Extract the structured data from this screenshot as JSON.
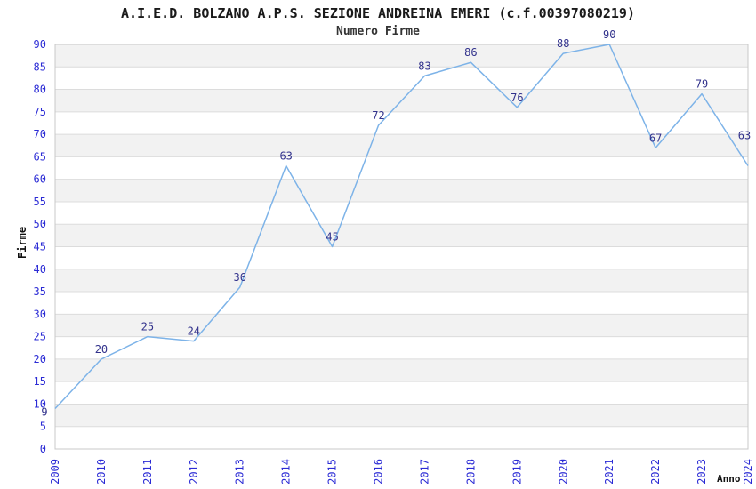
{
  "title": "A.I.E.D. BOLZANO A.P.S. SEZIONE ANDREINA EMERI (c.f.00397080219)",
  "subtitle": "Numero Firme",
  "chart_data": {
    "type": "line",
    "title": "A.I.E.D. BOLZANO A.P.S. SEZIONE ANDREINA EMERI (c.f.00397080219)",
    "subtitle": "Numero Firme",
    "xlabel": "Anno",
    "ylabel": "Firme",
    "categories": [
      "2009",
      "2010",
      "2011",
      "2012",
      "2013",
      "2014",
      "2015",
      "2016",
      "2017",
      "2018",
      "2019",
      "2020",
      "2021",
      "2022",
      "2023",
      "2024"
    ],
    "series": [
      {
        "name": "Numero Firme",
        "values": [
          9,
          20,
          25,
          24,
          36,
          63,
          45,
          72,
          83,
          86,
          76,
          88,
          90,
          67,
          79,
          63
        ]
      }
    ],
    "ylim": [
      0,
      90
    ],
    "ytick_step": 5,
    "grid": "horizontal",
    "bands": "alternating-gray",
    "legend": "none",
    "data_labels": true,
    "colors": {
      "line": "#7db3e8",
      "tick_label": "#2b2bd5",
      "data_label": "#32328c",
      "band": "#f2f2f2",
      "grid_line": "#dcdcdc",
      "plot_border": "#c8c8c8",
      "background": "#ffffff"
    }
  }
}
